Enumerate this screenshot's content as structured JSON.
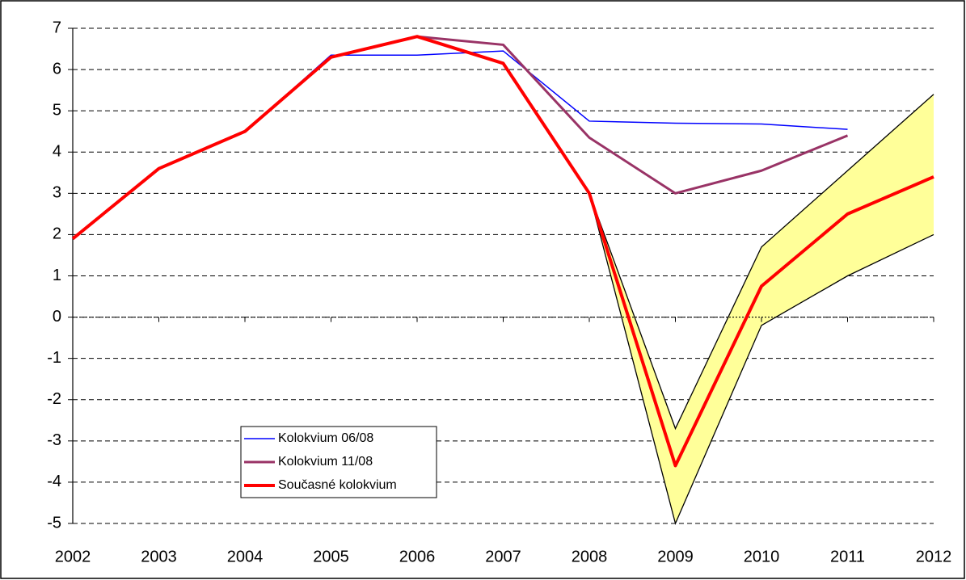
{
  "chart_data": {
    "type": "line",
    "x": [
      2002,
      2003,
      2004,
      2005,
      2006,
      2007,
      2008,
      2009,
      2010,
      2011,
      2012
    ],
    "xlim": [
      2002,
      2012
    ],
    "xticks": [
      2002,
      2003,
      2004,
      2005,
      2006,
      2007,
      2008,
      2009,
      2010,
      2011,
      2012
    ],
    "ylim": [
      -5,
      7
    ],
    "yticks": [
      -5,
      -4,
      -3,
      -2,
      -1,
      0,
      1,
      2,
      3,
      4,
      5,
      6,
      7
    ],
    "grid": true,
    "legend": "lower left",
    "band": {
      "color": "#ffff99",
      "upper": [
        null,
        null,
        null,
        null,
        null,
        null,
        3.0,
        -2.7,
        1.7,
        3.55,
        5.4
      ],
      "lower": [
        null,
        null,
        null,
        null,
        null,
        null,
        3.0,
        -5.0,
        -0.2,
        1.0,
        2.0
      ]
    },
    "series": [
      {
        "name": "Kolokvium 06/08",
        "color": "#0000ff",
        "width": 1.5,
        "values": [
          1.9,
          3.6,
          4.5,
          6.35,
          6.35,
          6.45,
          4.75,
          4.7,
          4.68,
          4.55,
          null
        ]
      },
      {
        "name": "Kolokvium 11/08",
        "color": "#993366",
        "width": 3,
        "values": [
          1.9,
          3.6,
          4.5,
          6.3,
          6.8,
          6.6,
          4.35,
          3.0,
          3.55,
          4.4,
          null
        ]
      },
      {
        "name": "Současné kolokvium",
        "color": "#ff0000",
        "width": 4,
        "values": [
          1.9,
          3.6,
          4.5,
          6.3,
          6.8,
          6.15,
          3.0,
          -3.6,
          0.75,
          2.5,
          3.4
        ]
      }
    ]
  }
}
